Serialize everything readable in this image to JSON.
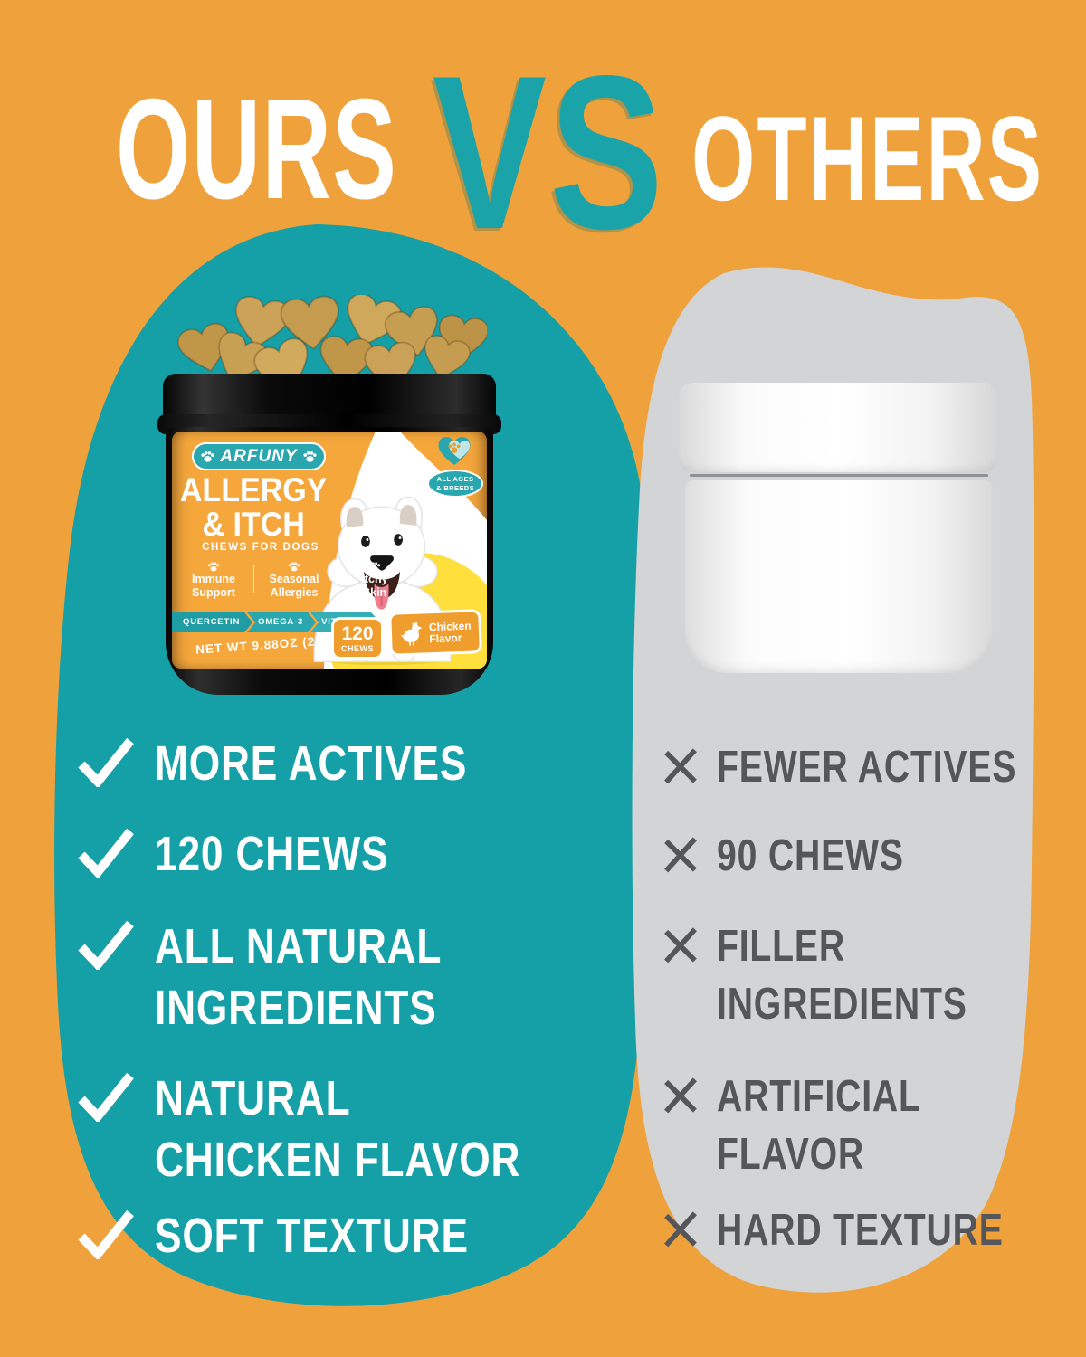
{
  "header": {
    "ours": "OURS",
    "vs": "VS",
    "others": "OTHERS"
  },
  "ours_panel": {
    "items": [
      {
        "lines": [
          "MORE ACTIVES"
        ]
      },
      {
        "lines": [
          "120 CHEWS"
        ]
      },
      {
        "lines": [
          "ALL NATURAL",
          "INGREDIENTS"
        ]
      },
      {
        "lines": [
          "NATURAL",
          "CHICKEN FLAVOR"
        ]
      },
      {
        "lines": [
          "SOFT TEXTURE"
        ]
      }
    ]
  },
  "others_panel": {
    "items": [
      {
        "lines": [
          "FEWER ACTIVES"
        ]
      },
      {
        "lines": [
          "90 CHEWS"
        ]
      },
      {
        "lines": [
          "FILLER",
          "INGREDIENTS"
        ]
      },
      {
        "lines": [
          "ARTIFICIAL",
          "FLAVOR"
        ]
      },
      {
        "lines": [
          "HARD TEXTURE"
        ]
      }
    ]
  },
  "product_label": {
    "brand": "ARFUNY",
    "title_line1": "ALLERGY",
    "title_line2": "& ITCH",
    "subtitle": "CHEWS FOR DOGS",
    "benefits": [
      [
        "Immune",
        "Support"
      ],
      [
        "Seasonal",
        "Allergies"
      ],
      [
        "Itchy",
        "Skin"
      ]
    ],
    "banner": [
      "QUERCETIN",
      "OMEGA-3",
      "VITAMINS"
    ],
    "net_weight": "NET WT  9.88OZ (280g)",
    "chews_count": "120",
    "chews_count_label": "CHEWS",
    "flavor_line1": "Chicken",
    "flavor_line2": "Flavor",
    "badge_top_line1": "ALL AGES",
    "badge_top_line2": "& BREEDS"
  },
  "colors": {
    "background_orange": "#EFA23B",
    "ours_teal": "#159FA7",
    "others_gray": "#D3D4D5",
    "drawback_text_gray": "#54565A",
    "label_orange": "#F5A73C",
    "label_accent_teal": "#2AA7AE",
    "accent_yellow": "#FFDF3C",
    "badge_orange": "#EF9D2D",
    "check_white": "#FFFFFF",
    "chew_tan": "#C8A054"
  }
}
